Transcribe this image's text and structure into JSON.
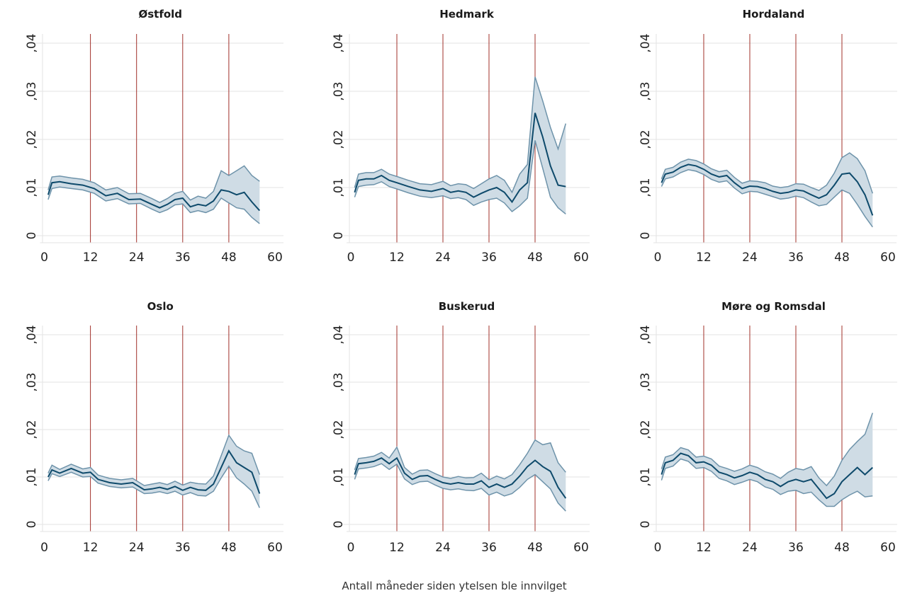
{
  "figure": {
    "xlabel": "Antall måneder siden ytelsen ble innvilget"
  },
  "colors": {
    "line": "#0e4a6b",
    "band_fill": "#cfdce5",
    "band_edge": "#6e93aa",
    "vline": "#a0302a",
    "grid": "#e3e3e3"
  },
  "chart_data": [
    {
      "type": "line",
      "title": "Østfold",
      "xlim": [
        0,
        60
      ],
      "ylim": [
        0,
        0.04
      ],
      "x_ticks": [
        0,
        12,
        24,
        36,
        48,
        60
      ],
      "x_tick_labels": [
        "0",
        "12",
        "24",
        "36",
        "48",
        "60"
      ],
      "y_ticks": [
        0,
        0.01,
        0.02,
        0.03,
        0.04
      ],
      "y_tick_labels": [
        "0",
        ",01",
        ",02",
        ",03",
        ",04"
      ],
      "vlines": [
        12,
        24,
        36,
        48
      ],
      "grid": true,
      "x": [
        1,
        2,
        4,
        7,
        10,
        13,
        16,
        19,
        22,
        25,
        28,
        30,
        32,
        34,
        36,
        38,
        40,
        42,
        44,
        46,
        48,
        50,
        52,
        54,
        56
      ],
      "mean": [
        0.0085,
        0.011,
        0.0112,
        0.0108,
        0.0105,
        0.0098,
        0.0083,
        0.0088,
        0.0075,
        0.0076,
        0.0065,
        0.0058,
        0.0065,
        0.0075,
        0.0078,
        0.006,
        0.0065,
        0.0062,
        0.0072,
        0.0095,
        0.0092,
        0.0085,
        0.009,
        0.007,
        0.0052
      ],
      "lower": [
        0.0075,
        0.0098,
        0.0101,
        0.0098,
        0.0095,
        0.0088,
        0.0072,
        0.0077,
        0.0066,
        0.0067,
        0.0055,
        0.0048,
        0.0054,
        0.0064,
        0.0066,
        0.0048,
        0.0052,
        0.0048,
        0.0055,
        0.0078,
        0.0068,
        0.0058,
        0.0055,
        0.0038,
        0.0025
      ],
      "upper": [
        0.0095,
        0.0122,
        0.0124,
        0.012,
        0.0117,
        0.011,
        0.0095,
        0.01,
        0.0087,
        0.0088,
        0.0077,
        0.0069,
        0.0077,
        0.0088,
        0.0092,
        0.0074,
        0.0082,
        0.0078,
        0.0092,
        0.0135,
        0.0125,
        0.0135,
        0.0145,
        0.0125,
        0.0113
      ]
    },
    {
      "type": "line",
      "title": "Hedmark",
      "xlim": [
        0,
        60
      ],
      "ylim": [
        0,
        0.04
      ],
      "x_ticks": [
        0,
        12,
        24,
        36,
        48,
        60
      ],
      "x_tick_labels": [
        "0",
        "12",
        "24",
        "36",
        "48",
        "60"
      ],
      "y_ticks": [
        0,
        0.01,
        0.02,
        0.03,
        0.04
      ],
      "y_tick_labels": [
        "0",
        ",01",
        ",02",
        ",03",
        ",04"
      ],
      "vlines": [
        12,
        24,
        36,
        48
      ],
      "grid": true,
      "x": [
        1,
        2,
        4,
        6,
        8,
        10,
        12,
        15,
        18,
        21,
        24,
        26,
        28,
        30,
        32,
        34,
        36,
        38,
        40,
        42,
        44,
        46,
        48,
        50,
        52,
        54,
        56
      ],
      "mean": [
        0.009,
        0.0115,
        0.0118,
        0.0118,
        0.0125,
        0.0115,
        0.011,
        0.0102,
        0.0095,
        0.0092,
        0.0098,
        0.009,
        0.0093,
        0.009,
        0.008,
        0.0088,
        0.0095,
        0.01,
        0.009,
        0.007,
        0.0095,
        0.011,
        0.0255,
        0.0205,
        0.0145,
        0.0105,
        0.0102
      ],
      "lower": [
        0.008,
        0.0102,
        0.0105,
        0.0106,
        0.0112,
        0.0102,
        0.0097,
        0.0089,
        0.0082,
        0.0079,
        0.0083,
        0.0077,
        0.0079,
        0.0075,
        0.0063,
        0.007,
        0.0075,
        0.0078,
        0.0068,
        0.005,
        0.0062,
        0.0078,
        0.0198,
        0.014,
        0.008,
        0.0058,
        0.0045
      ],
      "upper": [
        0.01,
        0.0128,
        0.0131,
        0.0131,
        0.0138,
        0.0128,
        0.0123,
        0.0115,
        0.0108,
        0.0106,
        0.0113,
        0.0104,
        0.0108,
        0.0106,
        0.0098,
        0.0108,
        0.0118,
        0.0125,
        0.0115,
        0.009,
        0.0128,
        0.0148,
        0.033,
        0.028,
        0.0225,
        0.018,
        0.0233
      ]
    },
    {
      "type": "line",
      "title": "Hordaland",
      "xlim": [
        0,
        60
      ],
      "ylim": [
        0,
        0.04
      ],
      "x_ticks": [
        0,
        12,
        24,
        36,
        48,
        60
      ],
      "x_tick_labels": [
        "0",
        "12",
        "24",
        "36",
        "48",
        "60"
      ],
      "y_ticks": [
        0,
        0.01,
        0.02,
        0.03,
        0.04
      ],
      "y_tick_labels": [
        "0",
        ",01",
        ",02",
        ",03",
        ",04"
      ],
      "vlines": [
        12,
        24,
        36,
        48
      ],
      "grid": true,
      "x": [
        1,
        2,
        4,
        6,
        8,
        10,
        12,
        14,
        16,
        18,
        20,
        22,
        24,
        26,
        28,
        30,
        32,
        34,
        36,
        38,
        40,
        42,
        44,
        46,
        48,
        50,
        52,
        54,
        56
      ],
      "mean": [
        0.011,
        0.0128,
        0.0132,
        0.0142,
        0.0148,
        0.0145,
        0.0138,
        0.0128,
        0.0122,
        0.0125,
        0.011,
        0.0098,
        0.0103,
        0.0102,
        0.0098,
        0.0092,
        0.0088,
        0.009,
        0.0095,
        0.0093,
        0.0085,
        0.0078,
        0.0085,
        0.0105,
        0.0128,
        0.013,
        0.0112,
        0.0085,
        0.0042
      ],
      "lower": [
        0.0102,
        0.0118,
        0.0122,
        0.0131,
        0.0137,
        0.0134,
        0.0127,
        0.0117,
        0.0111,
        0.0114,
        0.0099,
        0.0087,
        0.0092,
        0.0091,
        0.0086,
        0.0081,
        0.0076,
        0.0078,
        0.0082,
        0.0079,
        0.007,
        0.0062,
        0.0065,
        0.008,
        0.0095,
        0.0088,
        0.0065,
        0.004,
        0.0018
      ],
      "upper": [
        0.0118,
        0.0138,
        0.0142,
        0.0153,
        0.0159,
        0.0156,
        0.0149,
        0.0139,
        0.0133,
        0.0136,
        0.0121,
        0.0109,
        0.0114,
        0.0113,
        0.011,
        0.0103,
        0.01,
        0.0102,
        0.0108,
        0.0107,
        0.01,
        0.0094,
        0.0105,
        0.013,
        0.0162,
        0.0172,
        0.016,
        0.0135,
        0.0088
      ]
    },
    {
      "type": "line",
      "title": "Oslo",
      "xlim": [
        0,
        60
      ],
      "ylim": [
        0,
        0.04
      ],
      "x_ticks": [
        0,
        12,
        24,
        36,
        48,
        60
      ],
      "x_tick_labels": [
        "0",
        "12",
        "24",
        "36",
        "48",
        "60"
      ],
      "y_ticks": [
        0,
        0.01,
        0.02,
        0.03,
        0.04
      ],
      "y_tick_labels": [
        "0",
        ",01",
        ",02",
        ",03",
        ",04"
      ],
      "vlines": [
        12,
        24,
        36,
        48
      ],
      "grid": true,
      "x": [
        1,
        2,
        4,
        7,
        10,
        12,
        14,
        17,
        20,
        23,
        26,
        28,
        30,
        32,
        34,
        36,
        38,
        40,
        42,
        44,
        46,
        48,
        50,
        52,
        54,
        56
      ],
      "mean": [
        0.01,
        0.0115,
        0.0108,
        0.0118,
        0.0108,
        0.011,
        0.0095,
        0.0088,
        0.0085,
        0.0088,
        0.0073,
        0.0075,
        0.0078,
        0.0074,
        0.008,
        0.0072,
        0.0078,
        0.0073,
        0.0072,
        0.0085,
        0.012,
        0.0155,
        0.013,
        0.012,
        0.011,
        0.0065
      ],
      "lower": [
        0.0092,
        0.0107,
        0.0101,
        0.011,
        0.01,
        0.0101,
        0.0087,
        0.008,
        0.0077,
        0.0079,
        0.0065,
        0.0066,
        0.0069,
        0.0065,
        0.007,
        0.0062,
        0.0067,
        0.0061,
        0.006,
        0.007,
        0.0098,
        0.0123,
        0.0098,
        0.0085,
        0.007,
        0.0035
      ],
      "upper": [
        0.0108,
        0.0125,
        0.0116,
        0.0127,
        0.0117,
        0.012,
        0.0104,
        0.0097,
        0.0094,
        0.0097,
        0.0082,
        0.0085,
        0.0088,
        0.0084,
        0.0091,
        0.0083,
        0.0089,
        0.0086,
        0.0085,
        0.0102,
        0.0145,
        0.0188,
        0.0165,
        0.0155,
        0.015,
        0.0105
      ]
    },
    {
      "type": "line",
      "title": "Buskerud",
      "xlim": [
        0,
        60
      ],
      "ylim": [
        0,
        0.04
      ],
      "x_ticks": [
        0,
        12,
        24,
        36,
        48,
        60
      ],
      "x_tick_labels": [
        "0",
        "12",
        "24",
        "36",
        "48",
        "60"
      ],
      "y_ticks": [
        0,
        0.01,
        0.02,
        0.03,
        0.04
      ],
      "y_tick_labels": [
        "0",
        ",01",
        ",02",
        ",03",
        ",04"
      ],
      "vlines": [
        12,
        24,
        36,
        48
      ],
      "grid": true,
      "x": [
        1,
        2,
        4,
        6,
        8,
        10,
        12,
        14,
        16,
        18,
        20,
        22,
        24,
        26,
        28,
        30,
        32,
        34,
        36,
        38,
        40,
        42,
        44,
        46,
        48,
        50,
        52,
        54,
        56
      ],
      "mean": [
        0.0105,
        0.0128,
        0.013,
        0.0133,
        0.014,
        0.0128,
        0.014,
        0.0108,
        0.0095,
        0.0102,
        0.0103,
        0.0095,
        0.0088,
        0.0085,
        0.0088,
        0.0085,
        0.0085,
        0.0092,
        0.0078,
        0.0085,
        0.0078,
        0.0085,
        0.0102,
        0.0122,
        0.0135,
        0.0122,
        0.0112,
        0.0078,
        0.0055
      ],
      "lower": [
        0.0095,
        0.0117,
        0.0119,
        0.0122,
        0.0128,
        0.0116,
        0.0127,
        0.0096,
        0.0084,
        0.009,
        0.0091,
        0.0083,
        0.0076,
        0.0073,
        0.0075,
        0.0072,
        0.0071,
        0.0076,
        0.0062,
        0.0068,
        0.006,
        0.0065,
        0.0078,
        0.0095,
        0.0105,
        0.009,
        0.0075,
        0.0045,
        0.0028
      ],
      "upper": [
        0.0115,
        0.0139,
        0.0141,
        0.0144,
        0.0152,
        0.014,
        0.0163,
        0.012,
        0.0106,
        0.0114,
        0.0115,
        0.0107,
        0.01,
        0.0097,
        0.0101,
        0.0098,
        0.0099,
        0.0108,
        0.0094,
        0.0102,
        0.0096,
        0.0105,
        0.0126,
        0.015,
        0.0178,
        0.0168,
        0.0172,
        0.013,
        0.011
      ]
    },
    {
      "type": "line",
      "title": "Møre og Romsdal",
      "xlim": [
        0,
        60
      ],
      "ylim": [
        0,
        0.04
      ],
      "x_ticks": [
        0,
        12,
        24,
        36,
        48,
        60
      ],
      "x_tick_labels": [
        "0",
        "12",
        "24",
        "36",
        "48",
        "60"
      ],
      "y_ticks": [
        0,
        0.01,
        0.02,
        0.03,
        0.04
      ],
      "y_tick_labels": [
        "0",
        ",01",
        ",02",
        ",03",
        ",04"
      ],
      "vlines": [
        12,
        24,
        36,
        48
      ],
      "grid": true,
      "x": [
        1,
        2,
        4,
        6,
        8,
        10,
        12,
        14,
        16,
        18,
        20,
        22,
        24,
        26,
        28,
        30,
        32,
        34,
        36,
        38,
        40,
        42,
        44,
        46,
        48,
        50,
        52,
        54,
        56
      ],
      "mean": [
        0.0105,
        0.013,
        0.0135,
        0.015,
        0.0145,
        0.013,
        0.0132,
        0.0125,
        0.011,
        0.0105,
        0.0098,
        0.0103,
        0.011,
        0.0105,
        0.0095,
        0.009,
        0.008,
        0.009,
        0.0095,
        0.009,
        0.0095,
        0.0075,
        0.0055,
        0.0065,
        0.009,
        0.0105,
        0.012,
        0.0105,
        0.012
      ],
      "lower": [
        0.0093,
        0.0118,
        0.0123,
        0.0138,
        0.0133,
        0.0118,
        0.012,
        0.0112,
        0.0097,
        0.0092,
        0.0084,
        0.0089,
        0.0095,
        0.009,
        0.0079,
        0.0074,
        0.0063,
        0.007,
        0.0072,
        0.0065,
        0.0068,
        0.0052,
        0.0038,
        0.0038,
        0.0052,
        0.0062,
        0.007,
        0.0058,
        0.006
      ],
      "upper": [
        0.0117,
        0.0142,
        0.0147,
        0.0162,
        0.0157,
        0.0142,
        0.0144,
        0.0138,
        0.0123,
        0.0118,
        0.0112,
        0.0117,
        0.0125,
        0.012,
        0.0111,
        0.0106,
        0.0097,
        0.011,
        0.0118,
        0.0115,
        0.0122,
        0.0098,
        0.0082,
        0.0102,
        0.0135,
        0.0158,
        0.0175,
        0.019,
        0.0235
      ]
    }
  ]
}
